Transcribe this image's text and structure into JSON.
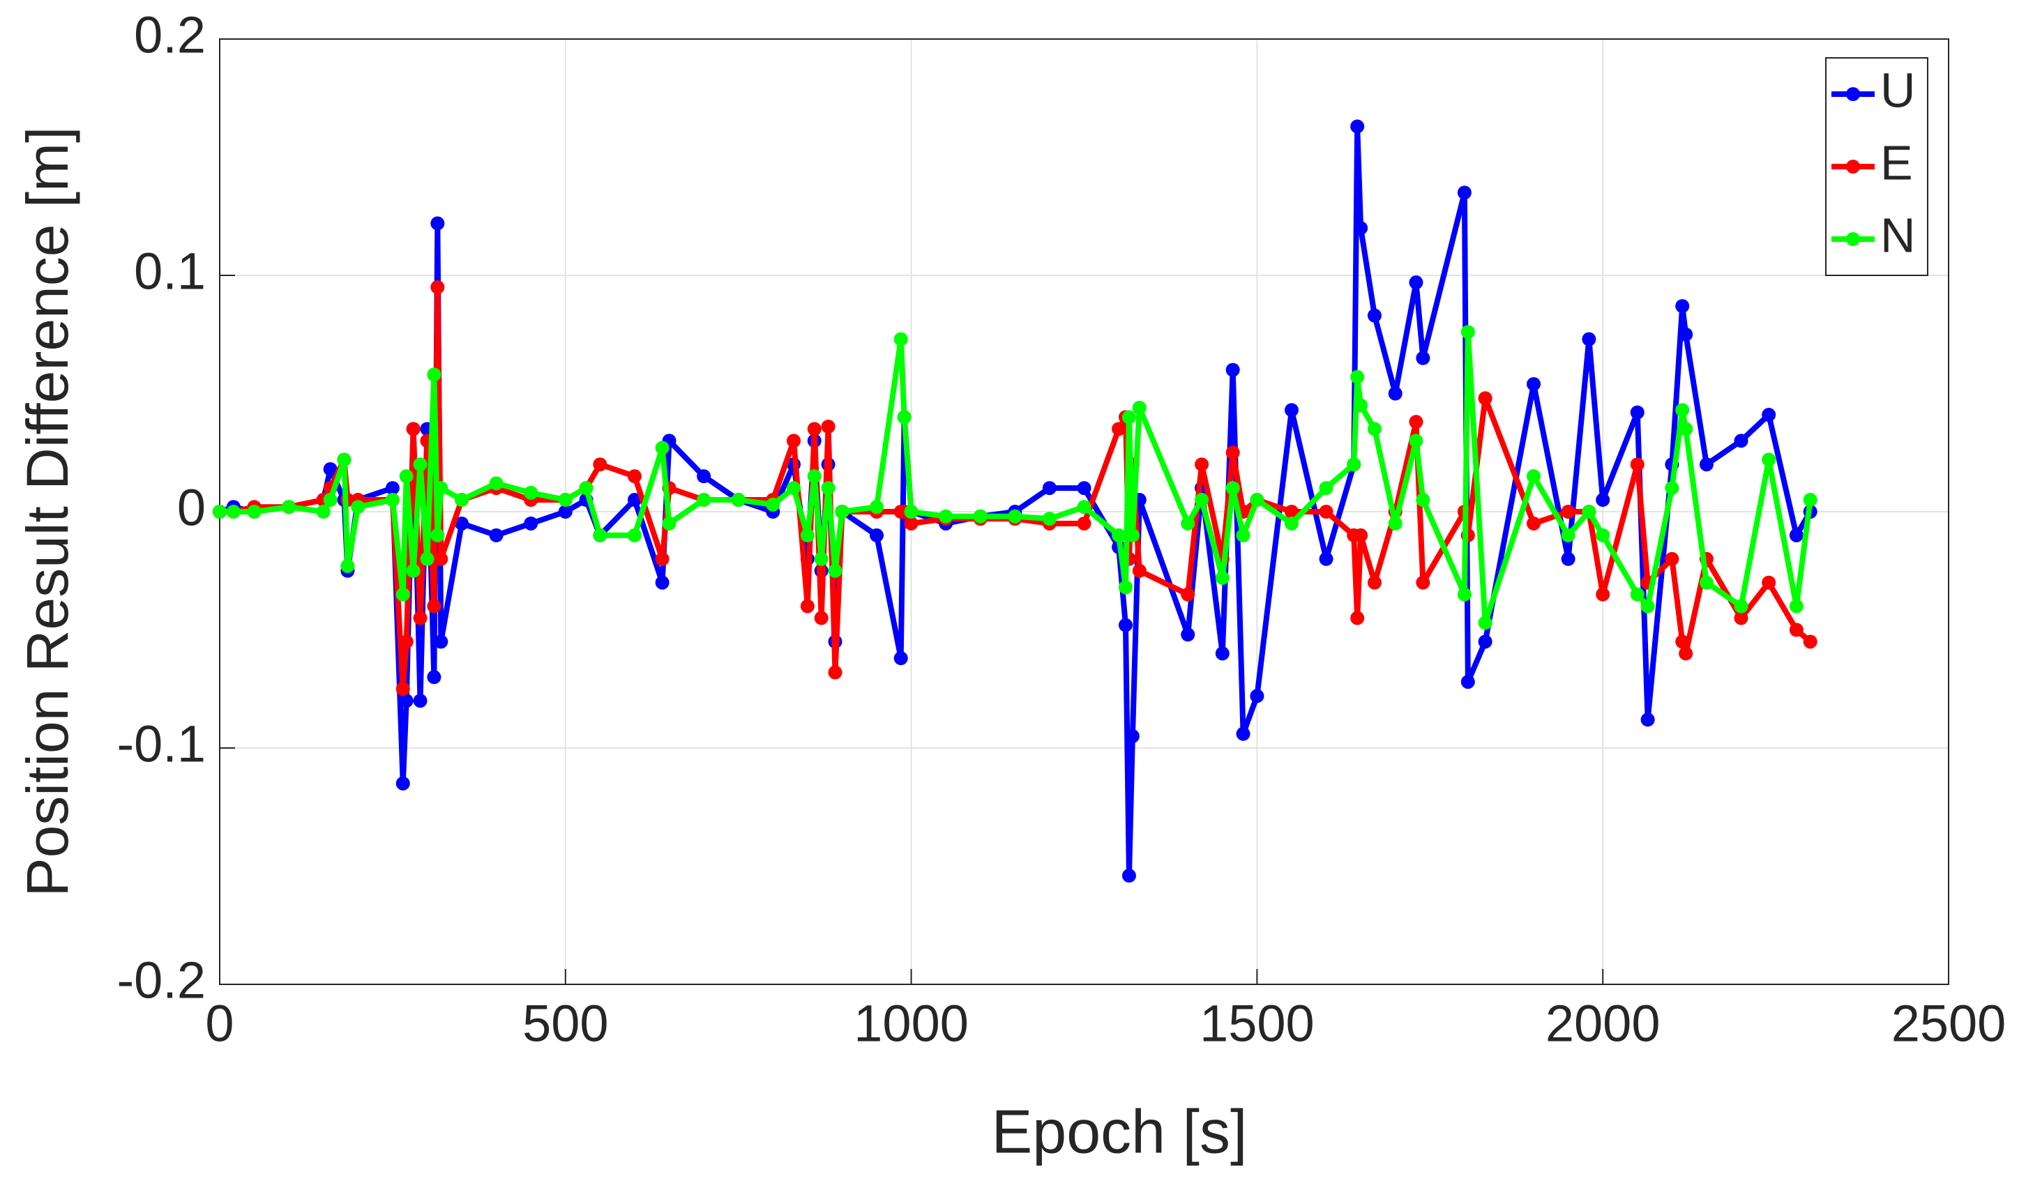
{
  "chart_data": {
    "type": "line",
    "xlabel": "Epoch [s]",
    "ylabel": "Position Result Difference [m]",
    "x": [
      0,
      20,
      50,
      100,
      150,
      160,
      180,
      185,
      200,
      250,
      265,
      270,
      280,
      290,
      300,
      310,
      315,
      320,
      350,
      400,
      450,
      500,
      530,
      550,
      600,
      640,
      650,
      700,
      750,
      800,
      830,
      850,
      860,
      870,
      880,
      890,
      900,
      950,
      985,
      990,
      1000,
      1050,
      1100,
      1150,
      1200,
      1250,
      1300,
      1310,
      1315,
      1320,
      1330,
      1400,
      1420,
      1450,
      1465,
      1480,
      1500,
      1550,
      1600,
      1640,
      1645,
      1650,
      1670,
      1700,
      1730,
      1740,
      1800,
      1805,
      1830,
      1900,
      1950,
      1980,
      2000,
      2050,
      2065,
      2100,
      2115,
      2120,
      2150,
      2200,
      2240,
      2280,
      2300
    ],
    "series": [
      {
        "name": "U",
        "color": "#0000ff",
        "values": [
          0,
          0.002,
          0,
          0.002,
          0.005,
          0.018,
          0.005,
          -0.025,
          0.005,
          0.01,
          -0.115,
          -0.08,
          0.035,
          -0.08,
          0.035,
          -0.07,
          0.122,
          -0.055,
          -0.005,
          -0.01,
          -0.005,
          0,
          0.005,
          -0.01,
          0.005,
          -0.03,
          0.03,
          0.015,
          0.005,
          0,
          0.02,
          -0.02,
          0.03,
          -0.025,
          0.02,
          -0.055,
          0,
          -0.01,
          -0.062,
          0.04,
          0,
          -0.005,
          -0.002,
          0,
          0.01,
          0.01,
          -0.015,
          -0.048,
          -0.154,
          -0.095,
          0.005,
          -0.052,
          0.01,
          -0.06,
          0.06,
          -0.094,
          -0.078,
          0.043,
          -0.02,
          0.02,
          0.163,
          0.12,
          0.083,
          0.05,
          0.097,
          0.065,
          0.135,
          -0.072,
          -0.055,
          0.054,
          -0.02,
          0.073,
          0.005,
          0.042,
          -0.088,
          0.02,
          0.087,
          0.075,
          0.02,
          0.03,
          0.041,
          -0.01,
          0
        ]
      },
      {
        "name": "E",
        "color": "#ff0000",
        "values": [
          0,
          0,
          0.002,
          0.002,
          0.005,
          0.01,
          0.022,
          0.005,
          0.005,
          0.005,
          -0.075,
          -0.055,
          0.035,
          -0.045,
          0.03,
          -0.04,
          0.095,
          -0.02,
          0.005,
          0.01,
          0.005,
          0.005,
          0.01,
          0.02,
          0.015,
          -0.02,
          0.01,
          0.005,
          0.005,
          0.005,
          0.03,
          -0.04,
          0.035,
          -0.045,
          0.036,
          -0.068,
          0,
          0,
          0,
          0,
          -0.005,
          -0.003,
          -0.003,
          -0.003,
          -0.005,
          -0.005,
          0.035,
          0.04,
          -0.02,
          0.02,
          -0.025,
          -0.035,
          0.02,
          -0.02,
          0.025,
          0,
          0.005,
          0,
          0,
          -0.01,
          -0.045,
          -0.01,
          -0.03,
          0,
          0.038,
          -0.03,
          0,
          -0.01,
          0.048,
          -0.005,
          0,
          0,
          -0.035,
          0.02,
          -0.03,
          -0.02,
          -0.055,
          -0.06,
          -0.02,
          -0.045,
          -0.03,
          -0.05,
          -0.055
        ]
      },
      {
        "name": "N",
        "color": "#00ff00",
        "values": [
          0,
          0,
          0,
          0.002,
          0,
          0.005,
          0.022,
          -0.023,
          0.002,
          0.005,
          -0.035,
          0.015,
          -0.025,
          0.02,
          -0.02,
          0.058,
          -0.01,
          0.01,
          0.005,
          0.012,
          0.008,
          0.005,
          0.01,
          -0.01,
          -0.01,
          0.027,
          -0.005,
          0.005,
          0.005,
          0.003,
          0.01,
          -0.01,
          0.015,
          -0.02,
          0.01,
          -0.025,
          0,
          0.002,
          0.073,
          0.04,
          0,
          -0.002,
          -0.002,
          -0.002,
          -0.003,
          0.002,
          -0.01,
          -0.032,
          0.04,
          -0.01,
          0.044,
          -0.005,
          0.005,
          -0.028,
          0.01,
          -0.01,
          0.005,
          -0.005,
          0.01,
          0.02,
          0.057,
          0.045,
          0.035,
          -0.005,
          0.03,
          0.005,
          -0.035,
          0.076,
          -0.047,
          0.015,
          -0.01,
          0,
          -0.01,
          -0.035,
          -0.04,
          0.01,
          0.043,
          0.035,
          -0.03,
          -0.04,
          0.022,
          -0.04,
          0.005
        ]
      }
    ],
    "xlim": [
      0,
      2500
    ],
    "xticks": [
      0,
      500,
      1000,
      1500,
      2000,
      2500
    ],
    "ylim": [
      -0.2,
      0.2
    ],
    "yticks": [
      -0.2,
      -0.1,
      0,
      0.1,
      0.2
    ],
    "grid": true,
    "legend": "top-right"
  }
}
